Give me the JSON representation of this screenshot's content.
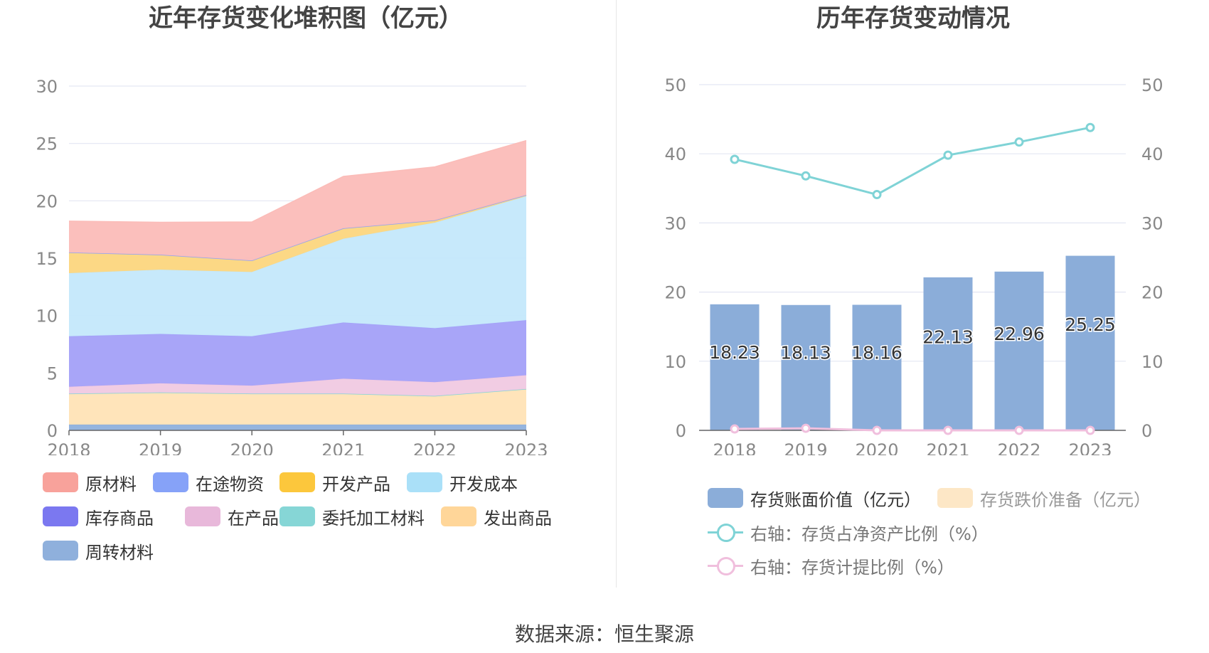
{
  "source_label": "数据来源：恒生聚源",
  "chart_data": [
    {
      "type": "area",
      "title": "近年存货变化堆积图（亿元）",
      "stacked": true,
      "categories": [
        "2018",
        "2019",
        "2020",
        "2021",
        "2022",
        "2023"
      ],
      "ylim": [
        0,
        30
      ],
      "yticks": [
        "0",
        "5",
        "10",
        "15",
        "20",
        "25",
        "30"
      ],
      "grid": true,
      "legend_position": "bottom",
      "series": [
        {
          "name": "周转材料",
          "color": "#8fb0dc",
          "values": [
            0.5,
            0.5,
            0.5,
            0.5,
            0.5,
            0.5
          ]
        },
        {
          "name": "发出商品",
          "color": "#ffe3b6",
          "values": [
            2.7,
            2.8,
            2.7,
            2.7,
            2.5,
            3.1
          ]
        },
        {
          "name": "委托加工材料",
          "color": "#86d6d6",
          "values": [
            0.0,
            0.0,
            0.0,
            0.0,
            0.0,
            0.0
          ]
        },
        {
          "name": "在产品",
          "color": "#f0c9e2",
          "values": [
            0.6,
            0.8,
            0.7,
            1.3,
            1.2,
            1.2
          ]
        },
        {
          "name": "库存商品",
          "color": "#a3a0f8",
          "values": [
            4.4,
            4.3,
            4.3,
            4.9,
            4.7,
            4.8
          ]
        },
        {
          "name": "开发成本",
          "color": "#c4e8fb",
          "values": [
            5.5,
            5.6,
            5.6,
            7.3,
            9.2,
            10.8
          ]
        },
        {
          "name": "开发产品",
          "color": "#fcd67e",
          "values": [
            1.8,
            1.3,
            1.0,
            0.9,
            0.2,
            0.1
          ]
        },
        {
          "name": "在途物资",
          "color": "#8ea5f5",
          "values": [
            0.0,
            0.0,
            0.0,
            0.0,
            0.0,
            0.0
          ]
        },
        {
          "name": "原材料",
          "color": "#fbbcb8",
          "values": [
            2.73,
            2.83,
            3.36,
            4.53,
            4.66,
            4.75
          ]
        }
      ],
      "legend_order": [
        "原材料",
        "在途物资",
        "开发产品",
        "开发成本",
        "库存商品",
        "在产品",
        "委托加工材料",
        "发出商品",
        "周转材料"
      ],
      "legend_colors": {
        "原材料": "#f8a29b",
        "在途物资": "#86a2f8",
        "开发产品": "#fcc73c",
        "开发成本": "#aae0f8",
        "库存商品": "#7b78f0",
        "在产品": "#e8b8da",
        "委托加工材料": "#86d6d6",
        "发出商品": "#ffd699",
        "周转材料": "#8fb0dc"
      }
    },
    {
      "type": "bar+line",
      "title": "历年存货变动情况",
      "categories": [
        "2018",
        "2019",
        "2020",
        "2021",
        "2022",
        "2023"
      ],
      "ylim_left": [
        0,
        50
      ],
      "ylim_right": [
        0,
        50
      ],
      "yticks": [
        "0",
        "10",
        "20",
        "30",
        "40",
        "50"
      ],
      "grid": true,
      "legend_position": "bottom",
      "bars": {
        "name": "存货账面价值（亿元）",
        "color": "#8badd9",
        "values": [
          18.23,
          18.13,
          18.16,
          22.13,
          22.96,
          25.25
        ],
        "labels": [
          "18.23",
          "18.13",
          "18.16",
          "22.13",
          "22.96",
          "25.25"
        ]
      },
      "bars_secondary": {
        "name": "存货跌价准备（亿元）",
        "color": "#fde7c6",
        "values": [
          0,
          0,
          0,
          0,
          0,
          0
        ]
      },
      "lines": [
        {
          "name": "右轴：存货占净资产比例（%）",
          "color": "#7fd3d6",
          "axis": "right",
          "values": [
            39.2,
            36.8,
            34.1,
            39.8,
            41.7,
            43.8
          ]
        },
        {
          "name": "右轴：存货计提比例（%）",
          "color": "#f0bfdd",
          "axis": "right",
          "values": [
            0.2,
            0.3,
            0.0,
            0.0,
            0.0,
            0.0
          ]
        }
      ]
    }
  ]
}
